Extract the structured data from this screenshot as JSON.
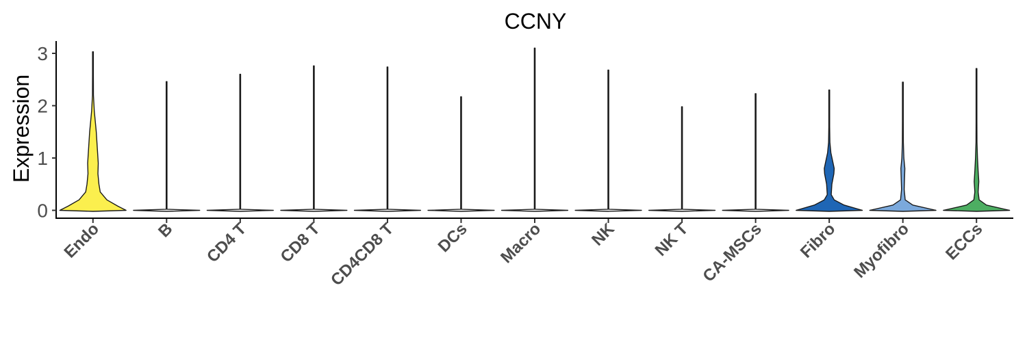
{
  "chart_data": {
    "type": "violin",
    "title": "CCNY",
    "xlabel": "",
    "ylabel": "Expression",
    "ylim": [
      -0.15,
      3.25
    ],
    "yticks": [
      0,
      1,
      2,
      3
    ],
    "grid": false,
    "legend": "none",
    "categories": [
      "Endo",
      "B",
      "CD4 T",
      "CD8 T",
      "CD4CD8 T",
      "DCs",
      "Macro",
      "NK",
      "NK T",
      "CA-MSCs",
      "Fibro",
      "Myofibro",
      "ECCs"
    ],
    "colors": [
      "#FBEF4E",
      "#FFFFFF",
      "#FFFFFF",
      "#FFFFFF",
      "#FFFFFF",
      "#FFFFFF",
      "#FFFFFF",
      "#FFFFFF",
      "#FFFFFF",
      "#FFFFFF",
      "#1F66B5",
      "#7BA9DC",
      "#4DAE62"
    ],
    "max_values": [
      3.03,
      2.46,
      2.6,
      2.76,
      2.74,
      2.17,
      3.1,
      2.68,
      1.98,
      2.23,
      2.3,
      2.45,
      2.71
    ],
    "density_profiles": [
      [
        [
          0,
          1.0
        ],
        [
          0.08,
          0.75
        ],
        [
          0.2,
          0.42
        ],
        [
          0.35,
          0.22
        ],
        [
          0.5,
          0.18
        ],
        [
          0.7,
          0.15
        ],
        [
          0.9,
          0.16
        ],
        [
          1.1,
          0.14
        ],
        [
          1.3,
          0.12
        ],
        [
          1.5,
          0.1
        ],
        [
          1.7,
          0.07
        ],
        [
          1.9,
          0.04
        ],
        [
          2.2,
          0.015
        ],
        [
          2.6,
          0.005
        ],
        [
          3.03,
          0.0
        ]
      ],
      [
        [
          0,
          1.0
        ],
        [
          0.02,
          0.0
        ],
        [
          2.46,
          0.0
        ]
      ],
      [
        [
          0,
          1.0
        ],
        [
          0.02,
          0.0
        ],
        [
          2.6,
          0.0
        ]
      ],
      [
        [
          0,
          1.0
        ],
        [
          0.02,
          0.0
        ],
        [
          2.76,
          0.0
        ]
      ],
      [
        [
          0,
          1.0
        ],
        [
          0.02,
          0.0
        ],
        [
          2.74,
          0.0
        ]
      ],
      [
        [
          0,
          1.0
        ],
        [
          0.02,
          0.0
        ],
        [
          2.17,
          0.0
        ]
      ],
      [
        [
          0,
          1.0
        ],
        [
          0.02,
          0.0
        ],
        [
          3.1,
          0.0
        ]
      ],
      [
        [
          0,
          1.0
        ],
        [
          0.02,
          0.0
        ],
        [
          2.68,
          0.0
        ]
      ],
      [
        [
          0,
          1.0
        ],
        [
          0.02,
          0.0
        ],
        [
          1.98,
          0.0
        ]
      ],
      [
        [
          0,
          1.0
        ],
        [
          0.02,
          0.0
        ],
        [
          2.23,
          0.0
        ]
      ],
      [
        [
          0,
          1.0
        ],
        [
          0.1,
          0.45
        ],
        [
          0.2,
          0.15
        ],
        [
          0.3,
          0.06
        ],
        [
          0.5,
          0.08
        ],
        [
          0.7,
          0.14
        ],
        [
          0.8,
          0.15
        ],
        [
          0.95,
          0.1
        ],
        [
          1.1,
          0.05
        ],
        [
          1.3,
          0.02
        ],
        [
          1.6,
          0.008
        ],
        [
          2.3,
          0.0
        ]
      ],
      [
        [
          0,
          1.0
        ],
        [
          0.1,
          0.3
        ],
        [
          0.2,
          0.07
        ],
        [
          0.4,
          0.04
        ],
        [
          0.6,
          0.05
        ],
        [
          0.8,
          0.06
        ],
        [
          1.0,
          0.03
        ],
        [
          1.3,
          0.015
        ],
        [
          1.7,
          0.005
        ],
        [
          2.45,
          0.0
        ]
      ],
      [
        [
          0,
          1.0
        ],
        [
          0.1,
          0.3
        ],
        [
          0.2,
          0.08
        ],
        [
          0.35,
          0.05
        ],
        [
          0.55,
          0.07
        ],
        [
          0.75,
          0.05
        ],
        [
          1.0,
          0.03
        ],
        [
          1.3,
          0.015
        ],
        [
          1.7,
          0.005
        ],
        [
          2.71,
          0.0
        ]
      ]
    ]
  }
}
